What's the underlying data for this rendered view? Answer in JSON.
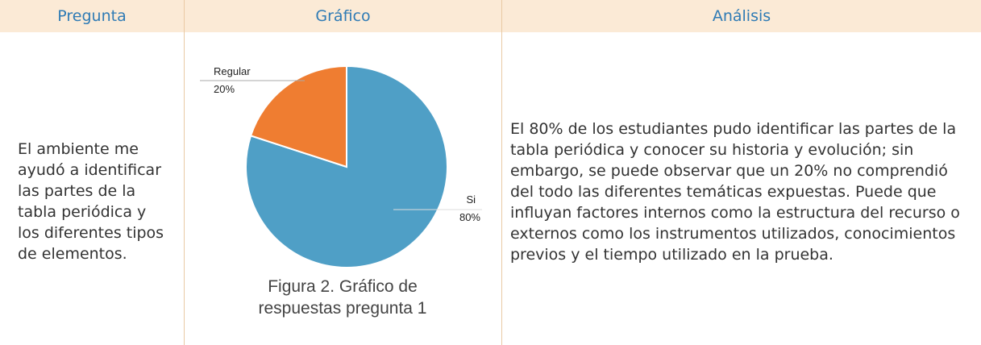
{
  "table": {
    "headers": [
      "Pregunta",
      "Gráfico",
      "Análisis"
    ],
    "rows": [
      {
        "pregunta": "El ambiente me ayudó a identificar las partes de la tabla periódica y los diferentes tipos de elementos.",
        "grafico": {
          "chart_data": {
            "type": "pie",
            "categories": [
              "Si",
              "Regular"
            ],
            "values": [
              80,
              20
            ],
            "value_labels": [
              "80%",
              "20%"
            ],
            "colors": [
              "#4f9fc6",
              "#ef7d31"
            ]
          }
        },
        "caption": "Figura 2. Gráfico de respuestas pregunta 1",
        "analisis": "El 80% de los estudiantes pudo identificar las partes de la tabla periódica y conocer su historia y evolución; sin embargo, se puede observar que un 20% no comprendió del todo las diferentes temáticas expuestas. Puede que influyan factores internos como la estructura del recurso o externos como los instrumentos utilizados, conocimientos previos y el tiempo utilizado en la prueba."
      }
    ]
  }
}
